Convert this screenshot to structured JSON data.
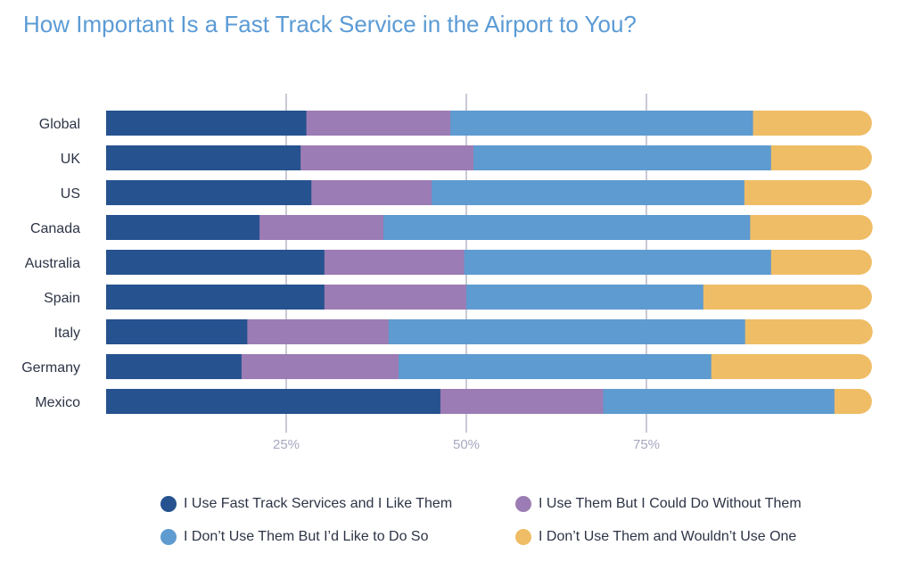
{
  "title": "How Important Is a Fast Track Service in the Airport to You?",
  "chart_data": {
    "type": "bar",
    "orientation": "horizontal",
    "stacked": true,
    "title": "How Important Is a Fast Track Service in the Airport to You?",
    "categories": [
      "Global",
      "UK",
      "US",
      "Canada",
      "Australia",
      "Spain",
      "Italy",
      "Germany",
      "Mexico"
    ],
    "series": [
      {
        "name": "I Use Fast Track Services and I Like Them",
        "color": "#26528f",
        "values": [
          27.8,
          27.0,
          28.5,
          21.3,
          30.3,
          30.3,
          19.6,
          18.8,
          46.4
        ]
      },
      {
        "name": "I Use Them But I Could Do Without Them",
        "color": "#9c7cb4",
        "values": [
          20.0,
          24.0,
          16.7,
          17.2,
          19.4,
          19.7,
          19.6,
          21.8,
          22.6
        ]
      },
      {
        "name": "I Don't Use Them But I'd Like to Do So",
        "color": "#5e9bd0",
        "values": [
          42.0,
          41.3,
          43.4,
          50.9,
          42.6,
          32.9,
          49.5,
          43.4,
          32.1
        ]
      },
      {
        "name": "I Don't Use Them and Wouldn't Use One",
        "color": "#efbd66",
        "values": [
          16.5,
          14.0,
          17.7,
          17.0,
          14.0,
          23.4,
          17.7,
          22.3,
          5.2
        ]
      }
    ],
    "xticks": [
      25,
      50,
      75
    ],
    "xtick_labels": [
      "25%",
      "50%",
      "75%"
    ],
    "xlim": [
      0,
      106.3
    ],
    "grid": true,
    "legend_position": "bottom"
  }
}
